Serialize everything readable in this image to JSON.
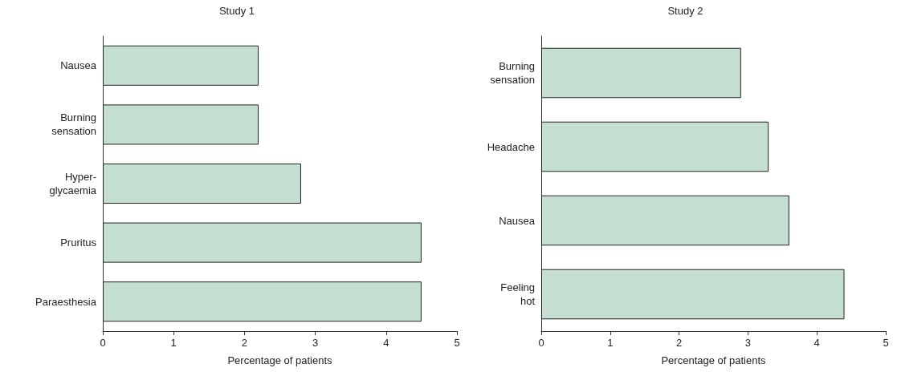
{
  "chart_data": [
    {
      "type": "bar",
      "orientation": "horizontal",
      "title": "Study 1",
      "xlabel": "Percentage of patients",
      "categories": [
        "Nausea",
        "Burning\nsensation",
        "Hyper-\nglycaemia",
        "Pruritus",
        "Paraesthesia"
      ],
      "values": [
        2.2,
        2.2,
        2.8,
        4.5,
        4.5
      ],
      "color": "#c4dfd0",
      "xlim": [
        0,
        5
      ],
      "xticks": [
        0,
        1,
        2,
        3,
        4,
        5
      ],
      "grid": false
    },
    {
      "type": "bar",
      "orientation": "horizontal",
      "title": "Study 2",
      "xlabel": "Percentage of patients",
      "categories": [
        "Burning\nsensation",
        "Headache",
        "Nausea",
        "Feeling\nhot"
      ],
      "values": [
        2.9,
        3.3,
        3.6,
        4.4
      ],
      "color": "#c4dfd0",
      "xlim": [
        0,
        5
      ],
      "xticks": [
        0,
        1,
        2,
        3,
        4,
        5
      ],
      "grid": false
    }
  ]
}
